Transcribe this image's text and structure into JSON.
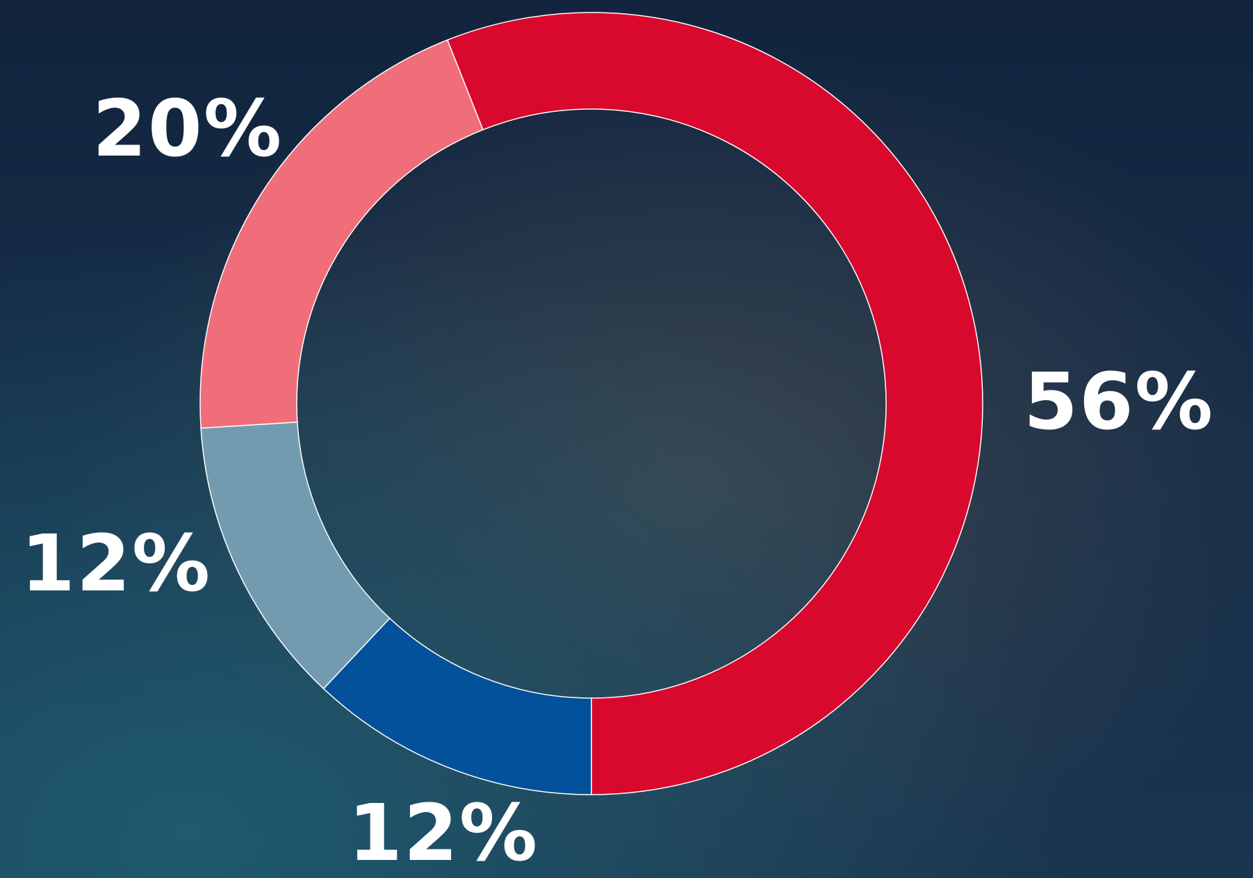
{
  "chart_data": {
    "type": "pie",
    "values": [
      56,
      12,
      12,
      20
    ],
    "value_labels": [
      "56%",
      "12%",
      "12%",
      "20%"
    ],
    "colors": [
      "#d9082d",
      "#02519a",
      "#739bb0",
      "#f06e79"
    ]
  }
}
